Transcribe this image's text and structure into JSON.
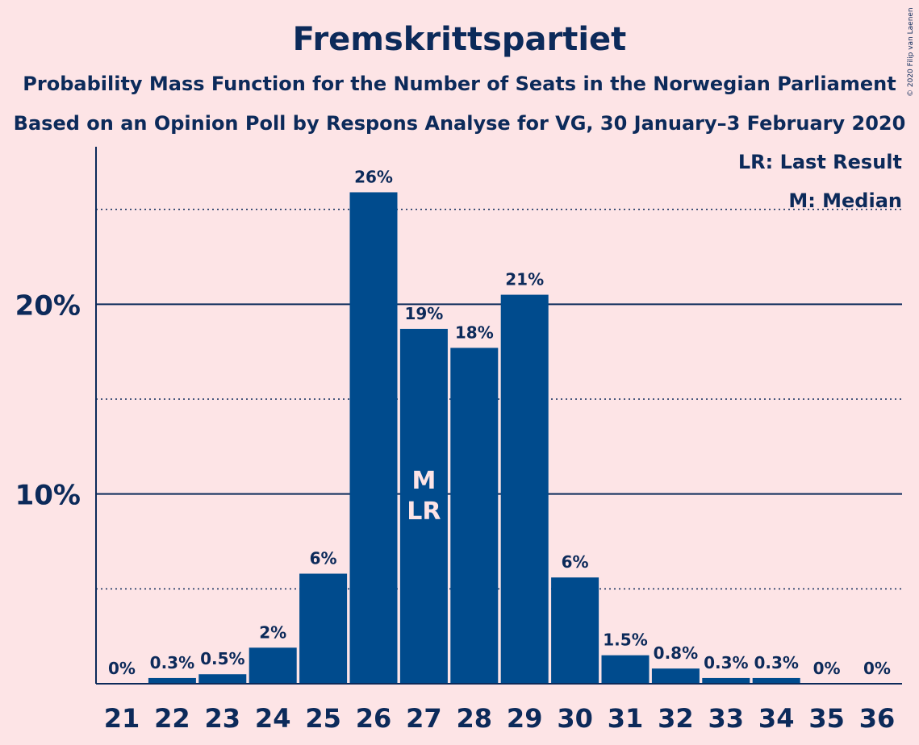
{
  "chart_data": {
    "type": "bar",
    "title": "Fremskrittspartiet",
    "subtitle": [
      "Probability Mass Function for the Number of Seats in the Norwegian Parliament",
      "Based on an Opinion Poll by Respons Analyse for VG, 30 January–3 February 2020"
    ],
    "categories": [
      "21",
      "22",
      "23",
      "24",
      "25",
      "26",
      "27",
      "28",
      "29",
      "30",
      "31",
      "32",
      "33",
      "34",
      "35",
      "36"
    ],
    "values": [
      0,
      0.3,
      0.5,
      1.9,
      5.8,
      25.9,
      18.7,
      17.7,
      20.5,
      5.6,
      1.5,
      0.8,
      0.3,
      0.3,
      0,
      0
    ],
    "data_labels": [
      "0%",
      "0.3%",
      "0.5%",
      "2%",
      "6%",
      "26%",
      "19%",
      "18%",
      "21%",
      "6%",
      "1.5%",
      "0.8%",
      "0.3%",
      "0.3%",
      "0%",
      "0%"
    ],
    "y_ticks": [
      {
        "value": 10,
        "label": "10%"
      },
      {
        "value": 20,
        "label": "20%"
      }
    ],
    "minor_grid": [
      5,
      15,
      25
    ],
    "ylim": [
      0,
      28.3
    ],
    "xlabel": "",
    "ylabel": "",
    "median_category": "27",
    "last_result_category": "27",
    "bar_markers": {
      "median": "M",
      "last_result": "LR"
    },
    "legend": {
      "placement": "top-right",
      "items": [
        "LR: Last Result",
        "M: Median"
      ]
    },
    "grid": true,
    "colors": {
      "background": "#FDE4E6",
      "bar": "#004B8D",
      "text": "#0C2A5A",
      "grid": "#0C2A5A",
      "marker_text": "#FDE4E6"
    }
  },
  "copyright": "© 2020 Filip van Laenen"
}
